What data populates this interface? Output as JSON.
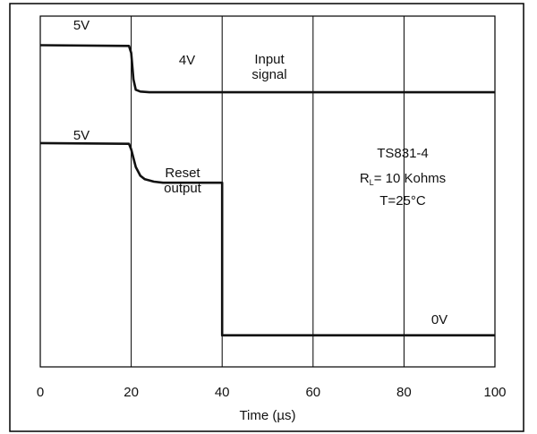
{
  "chart_data": {
    "type": "line",
    "title": "",
    "xlabel": "Time (µs)",
    "ylabel": "",
    "xlim": [
      0,
      100
    ],
    "x_ticks": [
      0,
      20,
      40,
      60,
      80,
      100
    ],
    "x_tick_labels": [
      "0",
      "20",
      "40",
      "60",
      "80",
      "100"
    ],
    "ylim": [
      0,
      1
    ],
    "grid": true,
    "series": [
      {
        "name": "Input signal",
        "points": [
          [
            0,
            0.917
          ],
          [
            19.5,
            0.915
          ],
          [
            20,
            0.895
          ],
          [
            20.5,
            0.82
          ],
          [
            21,
            0.79
          ],
          [
            22,
            0.785
          ],
          [
            24,
            0.783
          ],
          [
            100,
            0.783
          ]
        ]
      },
      {
        "name": "Reset output",
        "points": [
          [
            0,
            0.638
          ],
          [
            19.5,
            0.636
          ],
          [
            20,
            0.62
          ],
          [
            21,
            0.57
          ],
          [
            22,
            0.545
          ],
          [
            23,
            0.535
          ],
          [
            25,
            0.528
          ],
          [
            27,
            0.525
          ],
          [
            40,
            0.525
          ],
          [
            40,
            0.09
          ],
          [
            100,
            0.09
          ]
        ]
      }
    ],
    "annotations": [
      {
        "id": "input_5v",
        "text": "5V"
      },
      {
        "id": "input_4v",
        "text": "4V"
      },
      {
        "id": "input_label_1",
        "text": "Input"
      },
      {
        "id": "input_label_2",
        "text": "signal"
      },
      {
        "id": "reset_5v",
        "text": "5V"
      },
      {
        "id": "reset_label_1",
        "text": "Reset"
      },
      {
        "id": "reset_label_2",
        "text": "output"
      },
      {
        "id": "reset_0v",
        "text": "0V"
      },
      {
        "id": "device",
        "text": "TS831-4"
      },
      {
        "id": "load_prefix",
        "text": "R"
      },
      {
        "id": "load_sub",
        "text": "L"
      },
      {
        "id": "load_value",
        "text": "= 10 Kohms"
      },
      {
        "id": "temperature",
        "text": "T=25°C"
      }
    ]
  }
}
